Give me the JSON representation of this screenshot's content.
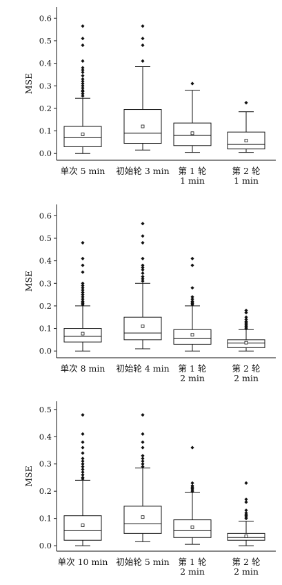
{
  "chart_data": [
    {
      "type": "boxplot",
      "ylabel": "MSE",
      "ylim": [
        -0.03,
        0.65
      ],
      "yticks": [
        "0.0",
        "0.1",
        "0.2",
        "0.3",
        "0.4",
        "0.5",
        "0.6"
      ],
      "categories": [
        [
          "单次 5 min"
        ],
        [
          "初始轮 3 min"
        ],
        [
          "第 1 轮",
          "1 min"
        ],
        [
          "第 2 轮",
          "1 min"
        ]
      ],
      "boxes": [
        {
          "whisker_low": 0.0,
          "q1": 0.03,
          "median": 0.07,
          "q3": 0.12,
          "whisker_high": 0.245,
          "mean": 0.085,
          "outliers": [
            0.255,
            0.265,
            0.275,
            0.28,
            0.29,
            0.3,
            0.31,
            0.32,
            0.33,
            0.345,
            0.36,
            0.37,
            0.38,
            0.41,
            0.48,
            0.51,
            0.565
          ]
        },
        {
          "whisker_low": 0.015,
          "q1": 0.045,
          "median": 0.09,
          "q3": 0.195,
          "whisker_high": 0.385,
          "mean": 0.12,
          "outliers": [
            0.41,
            0.48,
            0.51,
            0.565
          ]
        },
        {
          "whisker_low": 0.005,
          "q1": 0.035,
          "median": 0.08,
          "q3": 0.135,
          "whisker_high": 0.28,
          "mean": 0.09,
          "outliers": [
            0.31
          ]
        },
        {
          "whisker_low": 0.005,
          "q1": 0.02,
          "median": 0.04,
          "q3": 0.095,
          "whisker_high": 0.185,
          "mean": 0.057,
          "outliers": [
            0.225
          ]
        }
      ]
    },
    {
      "type": "boxplot",
      "ylabel": "MSE",
      "ylim": [
        -0.03,
        0.65
      ],
      "yticks": [
        "0.0",
        "0.1",
        "0.2",
        "0.3",
        "0.4",
        "0.5",
        "0.6"
      ],
      "categories": [
        [
          "单次 8 min"
        ],
        [
          "初始轮 4 min"
        ],
        [
          "第 1 轮",
          "2 min"
        ],
        [
          "第 2 轮",
          "2 min"
        ]
      ],
      "boxes": [
        {
          "whisker_low": 0.0,
          "q1": 0.04,
          "median": 0.065,
          "q3": 0.1,
          "whisker_high": 0.2,
          "mean": 0.077,
          "outliers": [
            0.205,
            0.21,
            0.215,
            0.22,
            0.23,
            0.24,
            0.25,
            0.26,
            0.27,
            0.28,
            0.29,
            0.3,
            0.35,
            0.38,
            0.41,
            0.48
          ]
        },
        {
          "whisker_low": 0.01,
          "q1": 0.05,
          "median": 0.08,
          "q3": 0.15,
          "whisker_high": 0.3,
          "mean": 0.11,
          "outliers": [
            0.31,
            0.32,
            0.33,
            0.345,
            0.36,
            0.37,
            0.38,
            0.41,
            0.48,
            0.51,
            0.565
          ]
        },
        {
          "whisker_low": 0.0,
          "q1": 0.03,
          "median": 0.055,
          "q3": 0.095,
          "whisker_high": 0.2,
          "mean": 0.072,
          "outliers": [
            0.205,
            0.21,
            0.215,
            0.22,
            0.23,
            0.24,
            0.28,
            0.38,
            0.41
          ]
        },
        {
          "whisker_low": 0.0,
          "q1": 0.015,
          "median": 0.035,
          "q3": 0.05,
          "whisker_high": 0.095,
          "mean": 0.037,
          "outliers": [
            0.1,
            0.105,
            0.11,
            0.115,
            0.12,
            0.125,
            0.13,
            0.14,
            0.15,
            0.17,
            0.18
          ]
        }
      ]
    },
    {
      "type": "boxplot",
      "ylabel": "MSE",
      "ylim": [
        -0.02,
        0.53
      ],
      "yticks": [
        "0.0",
        "0.1",
        "0.2",
        "0.3",
        "0.4",
        "0.5"
      ],
      "categories": [
        [
          "单次 10 min"
        ],
        [
          "初始轮 5 min"
        ],
        [
          "第 1 轮",
          "2 min"
        ],
        [
          "第 2 轮",
          "2 min"
        ]
      ],
      "boxes": [
        {
          "whisker_low": 0.0,
          "q1": 0.02,
          "median": 0.055,
          "q3": 0.11,
          "whisker_high": 0.24,
          "mean": 0.075,
          "outliers": [
            0.245,
            0.25,
            0.26,
            0.27,
            0.28,
            0.29,
            0.3,
            0.31,
            0.32,
            0.34,
            0.36,
            0.38,
            0.41,
            0.48
          ]
        },
        {
          "whisker_low": 0.015,
          "q1": 0.045,
          "median": 0.08,
          "q3": 0.145,
          "whisker_high": 0.285,
          "mean": 0.105,
          "outliers": [
            0.29,
            0.3,
            0.31,
            0.32,
            0.33,
            0.36,
            0.38,
            0.41,
            0.48
          ]
        },
        {
          "whisker_low": 0.005,
          "q1": 0.03,
          "median": 0.055,
          "q3": 0.095,
          "whisker_high": 0.195,
          "mean": 0.068,
          "outliers": [
            0.2,
            0.205,
            0.21,
            0.215,
            0.22,
            0.23,
            0.36
          ]
        },
        {
          "whisker_low": 0.0,
          "q1": 0.02,
          "median": 0.03,
          "q3": 0.045,
          "whisker_high": 0.09,
          "mean": 0.035,
          "outliers": [
            0.1,
            0.105,
            0.11,
            0.115,
            0.12,
            0.13,
            0.16,
            0.17,
            0.23
          ]
        }
      ]
    }
  ]
}
